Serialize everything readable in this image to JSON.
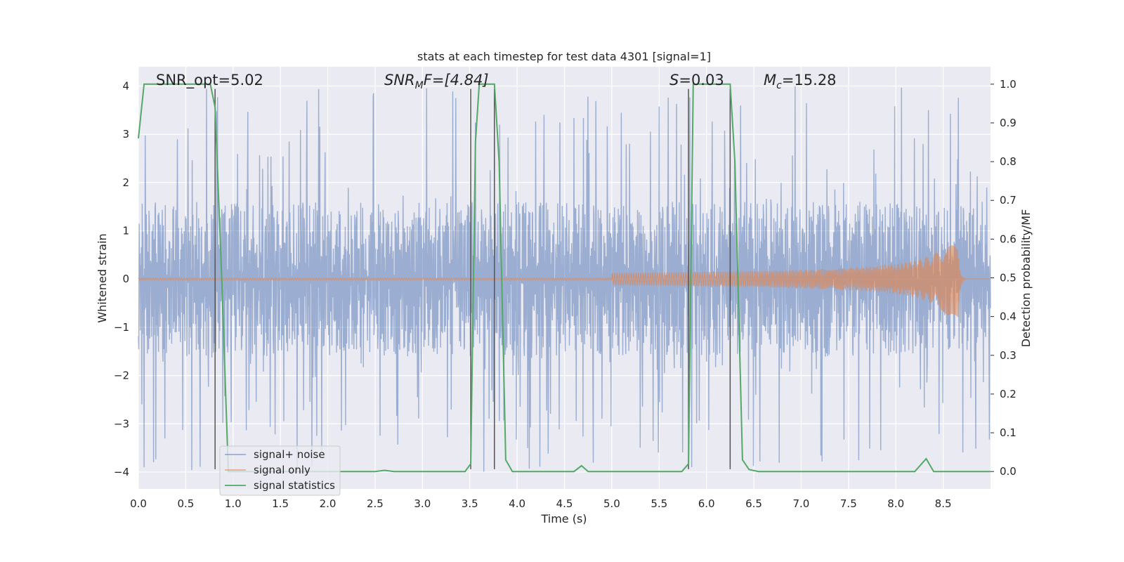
{
  "chart_data": {
    "type": "line",
    "title": "stats at each timestep for test data 4301 [signal=1]",
    "xlabel": "Time (s)",
    "ylabel": "Whitened strain",
    "y2label": "Detection probability/MF",
    "xlim": [
      0.0,
      9.0
    ],
    "ylim": [
      -4.35,
      4.4
    ],
    "y2lim": [
      -0.045,
      1.045
    ],
    "xticks": [
      "0.0",
      "0.5",
      "1.0",
      "1.5",
      "2.0",
      "2.5",
      "3.0",
      "3.5",
      "4.0",
      "4.5",
      "5.0",
      "5.5",
      "6.0",
      "6.5",
      "7.0",
      "7.5",
      "8.0",
      "8.5"
    ],
    "yticks": [
      "4",
      "3",
      "2",
      "1",
      "0",
      "−1",
      "−2",
      "−3",
      "−4"
    ],
    "y2ticks": [
      "1.0",
      "0.9",
      "0.8",
      "0.7",
      "0.6",
      "0.5",
      "0.4",
      "0.3",
      "0.2",
      "0.1",
      "0.0"
    ],
    "grid": true,
    "legend_position": "lower-left",
    "annotations": {
      "snr_opt": "SNR_opt=5.02",
      "snr_mf_prefix": "SNR",
      "snr_mf_sub": "M",
      "snr_mf_rest": "F=[4.84]",
      "s_var": "S",
      "s_rest": "=0.03",
      "mc_var": "M",
      "mc_sub": "c",
      "mc_rest": "=15.28"
    },
    "vertical_lines_x": [
      0.81,
      3.51,
      3.76,
      5.81,
      6.25
    ],
    "series": [
      {
        "name": "signal+ noise",
        "color": "#4c72b0",
        "opacity": 0.5,
        "description": "whitened strain, band ±1.5 with spikes up to ±4",
        "envelope": {
          "core": 1.6,
          "peak": 4.0,
          "sample_rate_hz": 250
        }
      },
      {
        "name": "signal only",
        "color": "#dd8452",
        "chirp": {
          "start_amp": 0.02,
          "peak_amp": 0.82,
          "merger_time": 8.66,
          "end_time": 9.0
        }
      },
      {
        "name": "signal statistics",
        "color": "#55a868",
        "axis": "right",
        "x": [
          0.0,
          0.06,
          0.1,
          0.2,
          0.3,
          0.4,
          0.5,
          0.6,
          0.7,
          0.76,
          0.81,
          0.88,
          0.95,
          1.05,
          1.5,
          2.0,
          2.5,
          2.6,
          2.7,
          3.0,
          3.3,
          3.45,
          3.51,
          3.56,
          3.6,
          3.7,
          3.76,
          3.81,
          3.88,
          3.95,
          4.1,
          4.4,
          4.6,
          4.68,
          4.75,
          5.0,
          5.5,
          5.74,
          5.81,
          5.86,
          6.0,
          6.2,
          6.25,
          6.3,
          6.38,
          6.45,
          6.55,
          7.0,
          7.5,
          8.0,
          8.2,
          8.32,
          8.4,
          8.6,
          9.0
        ],
        "values": [
          0.86,
          1.0,
          1.0,
          1.0,
          1.0,
          1.0,
          1.0,
          1.0,
          1.0,
          1.0,
          0.94,
          0.5,
          0.0,
          0.0,
          0.0,
          0.0,
          0.0,
          0.003,
          0.0,
          0.0,
          0.0,
          0.0,
          0.02,
          0.85,
          1.0,
          1.0,
          1.0,
          0.8,
          0.03,
          0.0,
          0.0,
          0.0,
          0.0,
          0.015,
          0.0,
          0.0,
          0.0,
          0.0,
          0.02,
          1.0,
          1.0,
          1.0,
          1.0,
          0.8,
          0.03,
          0.005,
          0.0,
          0.0,
          0.0,
          0.0,
          0.0,
          0.033,
          0.0,
          0.0,
          0.0
        ]
      }
    ],
    "legend": [
      "signal+ noise",
      "signal only",
      "signal statistics"
    ]
  },
  "colors": {
    "axes_bg": "#eaeaf2",
    "grid": "#ffffff",
    "text": "#262626",
    "vline": "#555555"
  }
}
